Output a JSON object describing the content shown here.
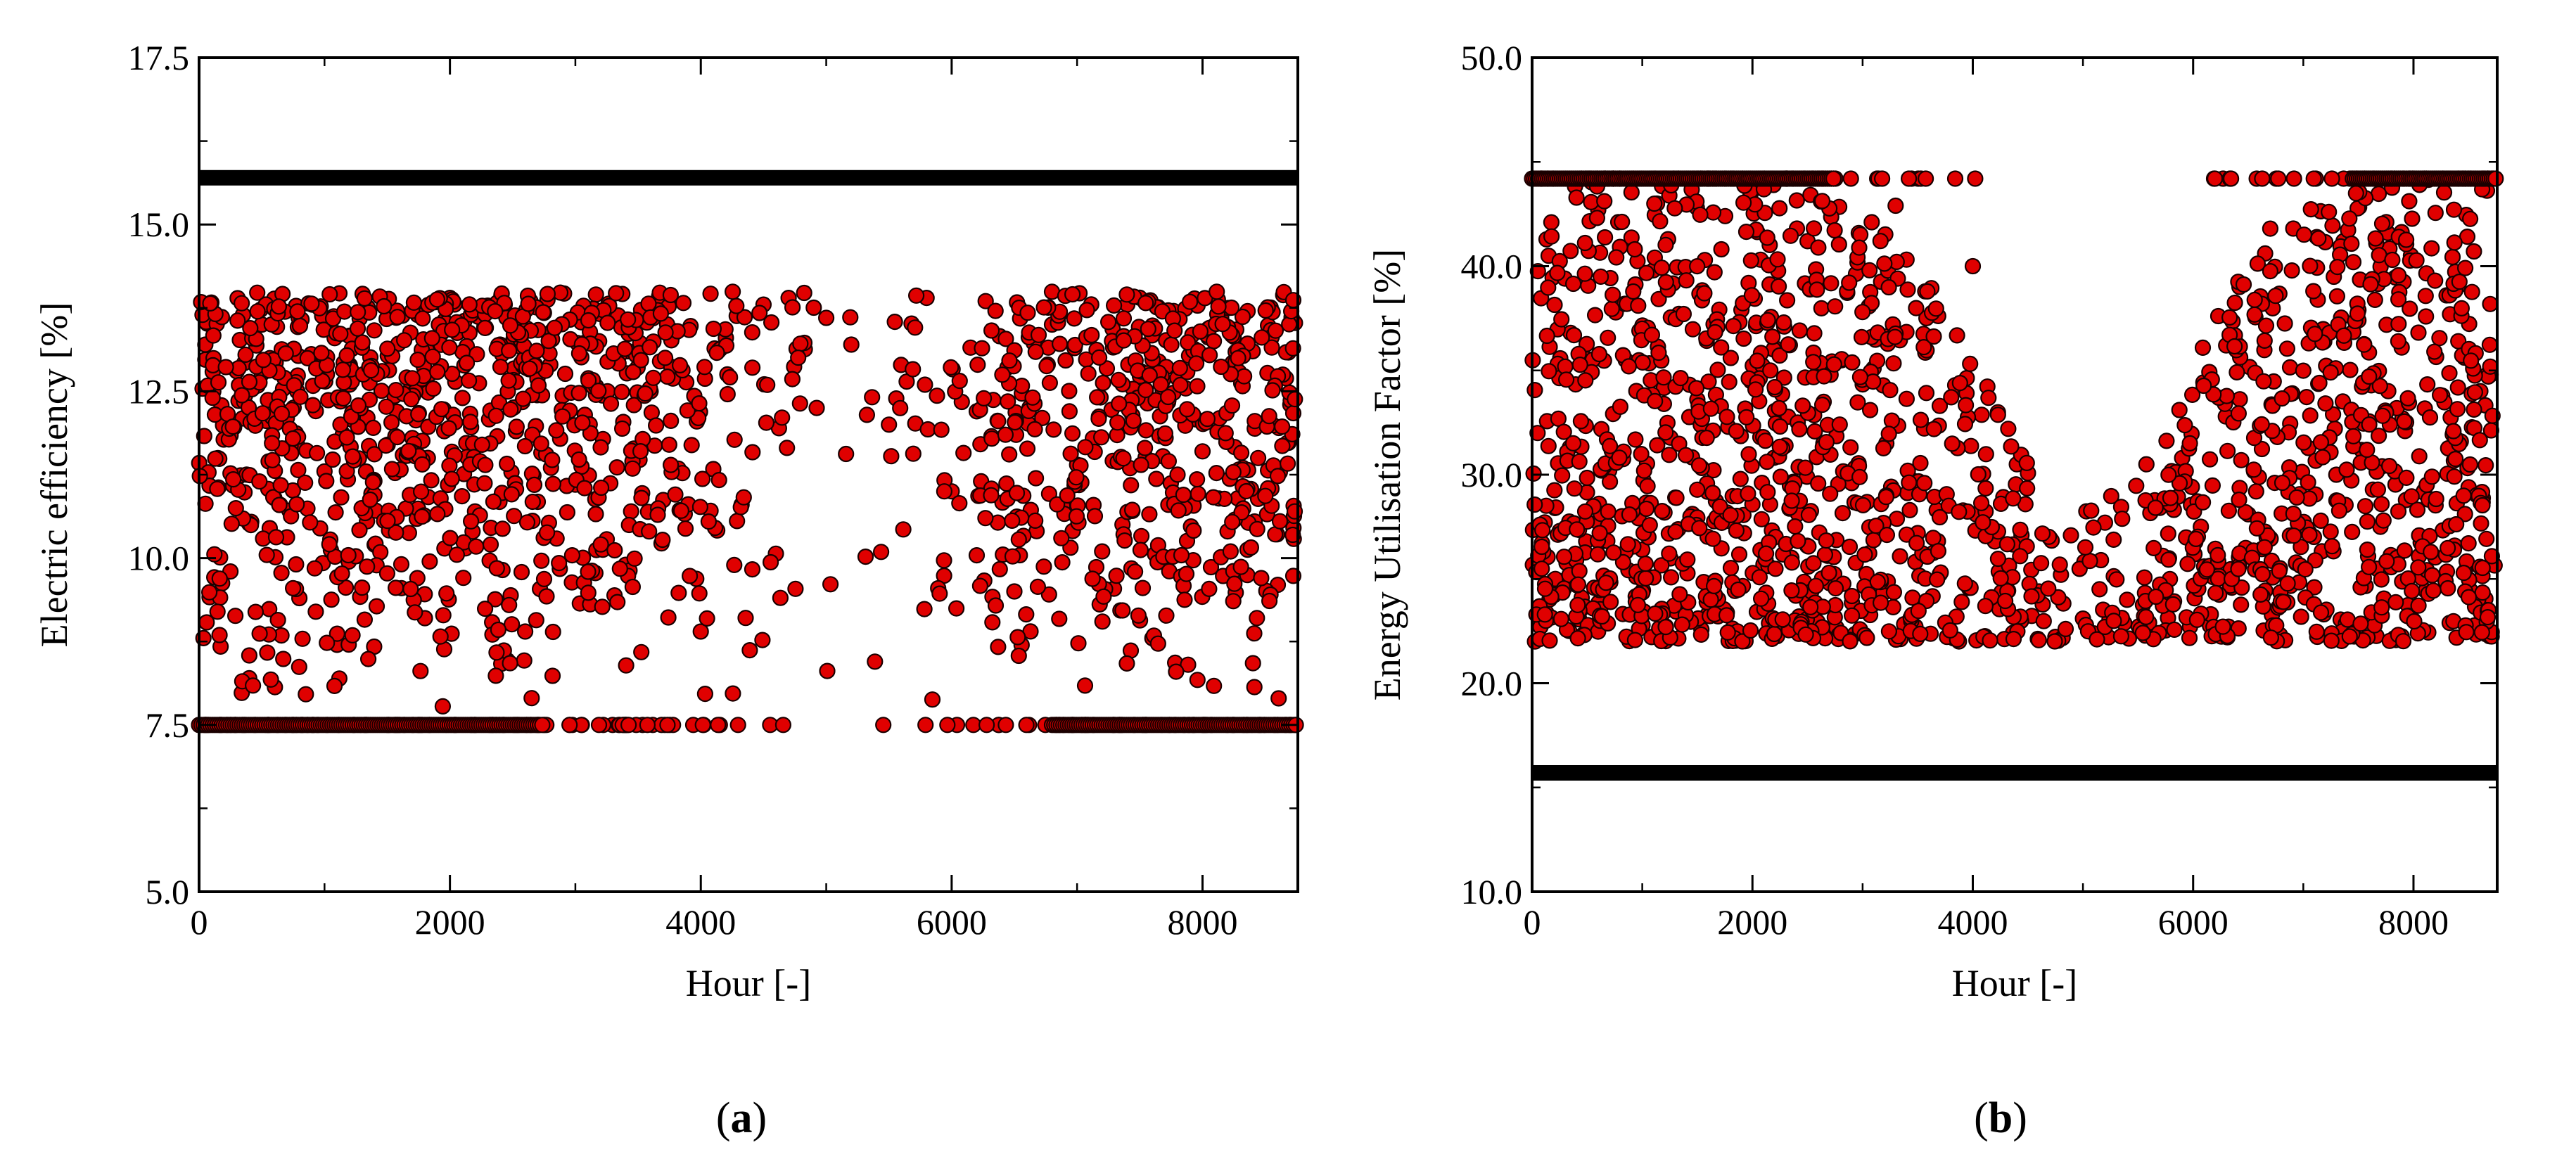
{
  "colors": {
    "marker_fill": "#e00000",
    "marker_edge": "#1a0000",
    "reference_line": "#000000",
    "axes": "#000000"
  },
  "chart_data": [
    {
      "type": "scatter",
      "panel_label": "a",
      "xlabel": "Hour [-]",
      "ylabel": "Electric efficiency [%]",
      "xlim": [
        0,
        8760
      ],
      "ylim": [
        5.0,
        17.5
      ],
      "xticks": [
        0,
        2000,
        4000,
        6000,
        8000
      ],
      "xtick_labels": [
        "0",
        "2000",
        "4000",
        "6000",
        "8000"
      ],
      "yticks": [
        5.0,
        7.5,
        10.0,
        12.5,
        15.0,
        17.5
      ],
      "ytick_labels": [
        "5.0",
        "7.5",
        "10.0",
        "12.5",
        "15.0",
        "17.5"
      ],
      "reference_lines": [
        15.7
      ],
      "series": [
        {
          "values_min": 7.5,
          "values_max": 14.0,
          "floor_value": 7.5,
          "approx_points": [
            [
              50,
              13.2
            ],
            [
              150,
              11.5
            ],
            [
              250,
              9.8
            ],
            [
              300,
              12.8
            ],
            [
              400,
              8.2
            ],
            [
              500,
              13.5
            ],
            [
              600,
              10.9
            ],
            [
              700,
              12.1
            ],
            [
              800,
              9.4
            ],
            [
              900,
              13.8
            ],
            [
              1000,
              11.3
            ],
            [
              1100,
              8.7
            ],
            [
              1200,
              12.6
            ],
            [
              1400,
              10.2
            ],
            [
              1500,
              13.6
            ],
            [
              1700,
              11.8
            ],
            [
              1800,
              9.1
            ],
            [
              2000,
              13.9
            ],
            [
              2100,
              12.4
            ],
            [
              2200,
              10.7
            ],
            [
              2400,
              13.2
            ],
            [
              2600,
              8.9
            ],
            [
              2800,
              12.9
            ],
            [
              3000,
              11.1
            ],
            [
              3200,
              13.7
            ],
            [
              3400,
              9.9
            ],
            [
              3600,
              12.5
            ],
            [
              3800,
              13.4
            ],
            [
              4000,
              8.9
            ],
            [
              4200,
              13.3
            ],
            [
              4500,
              13.8
            ],
            [
              4700,
              13.9
            ],
            [
              5000,
              13.6
            ],
            [
              5200,
              13.2
            ],
            [
              5500,
              12.0
            ],
            [
              5800,
              13.9
            ],
            [
              6000,
              11.0
            ],
            [
              6200,
              12.2
            ],
            [
              6500,
              9.5
            ],
            [
              6800,
              13.5
            ],
            [
              7000,
              11.4
            ],
            [
              7200,
              10.1
            ],
            [
              7400,
              13.8
            ],
            [
              7600,
              8.8
            ],
            [
              7800,
              12.7
            ],
            [
              8000,
              11.6
            ],
            [
              8200,
              10.4
            ],
            [
              8400,
              13.1
            ],
            [
              8600,
              9.6
            ],
            [
              8700,
              12.3
            ]
          ]
        }
      ]
    },
    {
      "type": "scatter",
      "panel_label": "b",
      "xlabel": "Hour [-]",
      "ylabel": "Energy Utilisation Factor [%]",
      "xlim": [
        0,
        8760
      ],
      "ylim": [
        10.0,
        50.0
      ],
      "xticks": [
        0,
        2000,
        4000,
        6000,
        8000
      ],
      "xtick_labels": [
        "0",
        "2000",
        "4000",
        "6000",
        "8000"
      ],
      "yticks": [
        10.0,
        20.0,
        30.0,
        40.0,
        50.0
      ],
      "ytick_labels": [
        "10.0",
        "20.0",
        "30.0",
        "40.0",
        "50.0"
      ],
      "reference_lines": [
        15.7
      ],
      "series": [
        {
          "values_min": 22.0,
          "values_max": 44.2,
          "ceiling_value": 44.2,
          "approx_points": [
            [
              50,
              32.0
            ],
            [
              150,
              40.5
            ],
            [
              250,
              27.3
            ],
            [
              350,
              36.8
            ],
            [
              450,
              24.1
            ],
            [
              600,
              42.7
            ],
            [
              700,
              30.2
            ],
            [
              850,
              35.5
            ],
            [
              1000,
              26.4
            ],
            [
              1100,
              39.8
            ],
            [
              1300,
              28.9
            ],
            [
              1500,
              33.6
            ],
            [
              1700,
              23.5
            ],
            [
              1900,
              37.9
            ],
            [
              2100,
              25.7
            ],
            [
              2300,
              31.4
            ],
            [
              2500,
              41.2
            ],
            [
              2700,
              24.8
            ],
            [
              2900,
              29.6
            ],
            [
              3100,
              35.1
            ],
            [
              3300,
              42.9
            ],
            [
              3500,
              27.2
            ],
            [
              3700,
              33.3
            ],
            [
              3900,
              23.9
            ],
            [
              4000,
              40.0
            ],
            [
              4200,
              26.8
            ],
            [
              4400,
              30.5
            ],
            [
              4600,
              24.4
            ],
            [
              4800,
              25.2
            ],
            [
              5000,
              23.1
            ],
            [
              5200,
              27.7
            ],
            [
              5400,
              24.0
            ],
            [
              5600,
              22.9
            ],
            [
              5900,
              30.8
            ],
            [
              6100,
              25.6
            ],
            [
              6300,
              36.2
            ],
            [
              6500,
              28.1
            ],
            [
              6700,
              41.8
            ],
            [
              6900,
              33.9
            ],
            [
              7100,
              24.6
            ],
            [
              7300,
              30.0
            ],
            [
              7500,
              37.4
            ],
            [
              7700,
              27.5
            ],
            [
              7900,
              32.7
            ],
            [
              8100,
              25.3
            ],
            [
              8300,
              38.6
            ],
            [
              8500,
              29.4
            ],
            [
              8700,
              34.8
            ]
          ]
        }
      ]
    }
  ]
}
